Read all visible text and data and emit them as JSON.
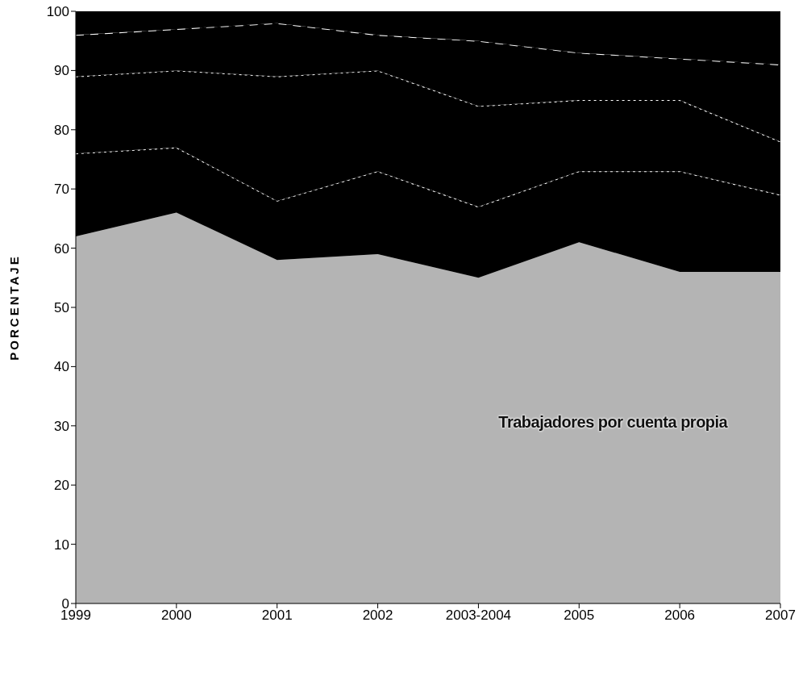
{
  "chart_data": {
    "type": "area",
    "stacked": true,
    "ylabel": "PORCENTAJE",
    "categories": [
      "1999",
      "2000",
      "2001",
      "2002",
      "2003-2004",
      "2005",
      "2006",
      "2007"
    ],
    "series": [
      {
        "name": "Trabajadores por cuenta propia",
        "color": "#b4b4b4",
        "values": [
          62,
          66,
          58,
          59,
          55,
          61,
          56,
          56
        ]
      },
      {
        "color": "#000000",
        "line_style": "dotted",
        "values": [
          14,
          11,
          10,
          14,
          12,
          12,
          17,
          13
        ]
      },
      {
        "color": "#000000",
        "line_style": "dotted",
        "values": [
          13,
          13,
          21,
          17,
          17,
          12,
          12,
          9
        ]
      },
      {
        "color": "#000000",
        "line_style": "dashed",
        "values": [
          7,
          7,
          9,
          6,
          11,
          8,
          7,
          13
        ]
      },
      {
        "color": "#000000",
        "values": [
          4,
          3,
          2,
          4,
          5,
          7,
          8,
          9
        ]
      }
    ],
    "ylim": [
      0,
      100
    ],
    "yticks": [
      0,
      10,
      20,
      30,
      40,
      50,
      60,
      70,
      80,
      90,
      100
    ]
  }
}
